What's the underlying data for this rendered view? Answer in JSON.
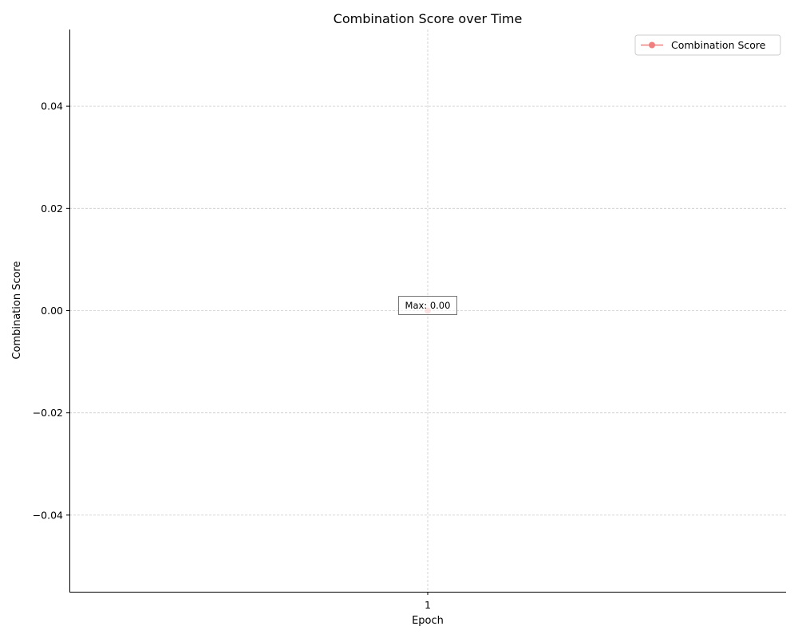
{
  "chart_data": {
    "type": "line",
    "title": "Combination Score over Time",
    "xlabel": "Epoch",
    "ylabel": "Combination Score",
    "x": [
      1
    ],
    "x_tick_labels": [
      "1"
    ],
    "y_ticks": [
      0.04,
      0.02,
      0.0,
      -0.02,
      -0.04
    ],
    "y_tick_labels": [
      "0.04",
      "0.02",
      "0.00",
      "−0.02",
      "−0.04"
    ],
    "ylim": [
      -0.055,
      0.055
    ],
    "grid": true,
    "legend_position": "top-right",
    "series": [
      {
        "name": "Combination Score",
        "values": [
          0.0
        ],
        "color": "#f08080"
      }
    ],
    "annotations": [
      {
        "text": "Max: 0.00",
        "x": 1,
        "y": 0.0
      }
    ]
  }
}
